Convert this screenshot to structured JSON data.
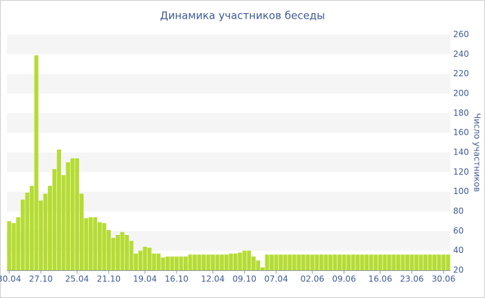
{
  "chart_data": {
    "type": "bar",
    "title": "Динамика участников беседы",
    "y_axis_label": "Число участников",
    "categories": [
      "30.04",
      null,
      null,
      null,
      null,
      null,
      null,
      "27.10",
      null,
      null,
      null,
      null,
      null,
      null,
      null,
      "25.04",
      null,
      null,
      null,
      null,
      null,
      null,
      "21.10",
      null,
      null,
      null,
      null,
      null,
      null,
      null,
      "19.04",
      null,
      null,
      null,
      null,
      null,
      null,
      "16.10",
      null,
      null,
      null,
      null,
      null,
      null,
      null,
      "12.04",
      null,
      null,
      null,
      null,
      null,
      null,
      "09.10",
      null,
      null,
      null,
      null,
      null,
      null,
      "07.04",
      null,
      null,
      null,
      null,
      null,
      null,
      null,
      "02.06",
      null,
      null,
      null,
      null,
      null,
      null,
      "09.06",
      null,
      null,
      null,
      null,
      null,
      null,
      null,
      "16.06",
      null,
      null,
      null,
      null,
      null,
      null,
      "23.06",
      null,
      null,
      null,
      null,
      null,
      null,
      "30.06",
      null
    ],
    "values": [
      70,
      68,
      74,
      92,
      99,
      106,
      239,
      91,
      98,
      106,
      123,
      143,
      117,
      130,
      134,
      134,
      98,
      73,
      74,
      74,
      69,
      68,
      61,
      53,
      56,
      59,
      56,
      50,
      37,
      40,
      44,
      43,
      37,
      37,
      33,
      34,
      34,
      34,
      34,
      34,
      36,
      36,
      36,
      36,
      36,
      36,
      36,
      36,
      36,
      37,
      37,
      38,
      40,
      40,
      34,
      30,
      23,
      36,
      36,
      36,
      36,
      36,
      36,
      36,
      36,
      36,
      36,
      36,
      36,
      36,
      36,
      36,
      36,
      36,
      36,
      36,
      36,
      36,
      36,
      36,
      36,
      36,
      36,
      36,
      36,
      36,
      36,
      36,
      36,
      36,
      36,
      36,
      36,
      36,
      36,
      36,
      36,
      36
    ],
    "color": "#b5dc34",
    "ylim": [
      20,
      260
    ],
    "yticks": [
      20,
      40,
      60,
      80,
      100,
      120,
      140,
      160,
      180,
      200,
      220,
      240,
      260
    ],
    "grid": true,
    "y_axis_side": "right"
  }
}
